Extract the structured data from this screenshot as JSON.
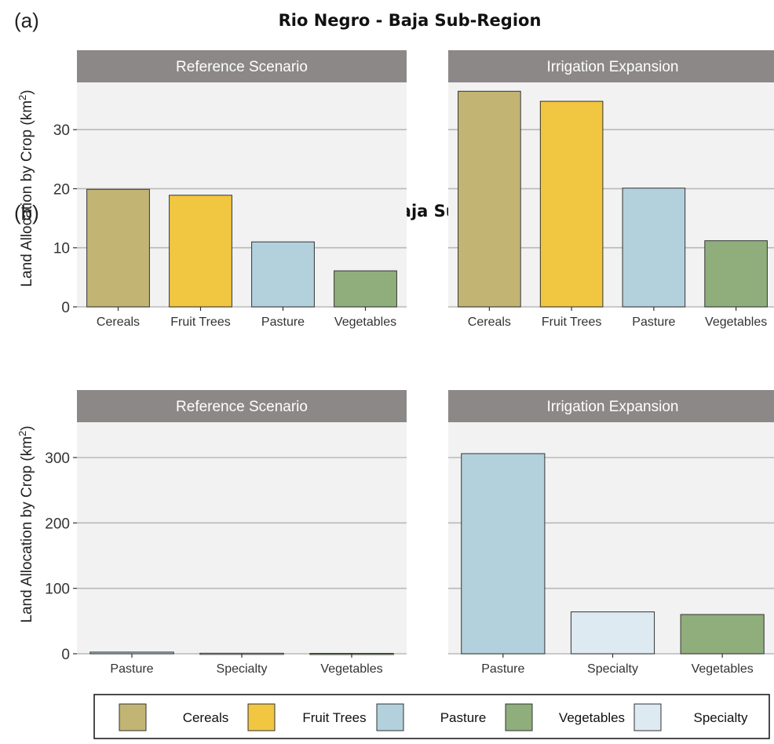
{
  "legend": {
    "items": [
      {
        "label": "Cereals",
        "color": "#c2b574"
      },
      {
        "label": "Fruit Trees",
        "color": "#f1c640"
      },
      {
        "label": "Pasture",
        "color": "#b2d1dc"
      },
      {
        "label": "Vegetables",
        "color": "#8fae7b"
      },
      {
        "label": "Specialty",
        "color": "#ddeaf1"
      }
    ]
  },
  "chart_data": [
    {
      "type": "bar",
      "panel_label": "(a)",
      "title": "Rio Negro - Baja Sub-Region",
      "ylabel": "Land Allocation by Crop (km",
      "ylabel_sup": "2",
      "ylabel_close": ")",
      "ylim": [
        0,
        38
      ],
      "yticks": [
        0,
        10,
        20,
        30
      ],
      "categories": [
        "Cereals",
        "Fruit Trees",
        "Pasture",
        "Vegetables"
      ],
      "facets": [
        {
          "name": "Reference Scenario",
          "values": [
            19.9,
            18.9,
            11.0,
            6.1
          ]
        },
        {
          "name": "Irrigation Expansion",
          "values": [
            36.5,
            34.8,
            20.1,
            11.2
          ]
        }
      ]
    },
    {
      "type": "bar",
      "panel_label": "(b)",
      "title": "La Pampa - Baja Sub-Region",
      "ylabel": "Land Allocation by Crop (km",
      "ylabel_sup": "2",
      "ylabel_close": ")",
      "ylim": [
        0,
        354
      ],
      "yticks": [
        0,
        100,
        200,
        300
      ],
      "categories": [
        "Pasture",
        "Specialty",
        "Vegetables"
      ],
      "facets": [
        {
          "name": "Reference Scenario",
          "values": [
            2.5,
            0.8,
            0.6
          ]
        },
        {
          "name": "Irrigation Expansion",
          "values": [
            306,
            64,
            60
          ]
        }
      ]
    }
  ]
}
